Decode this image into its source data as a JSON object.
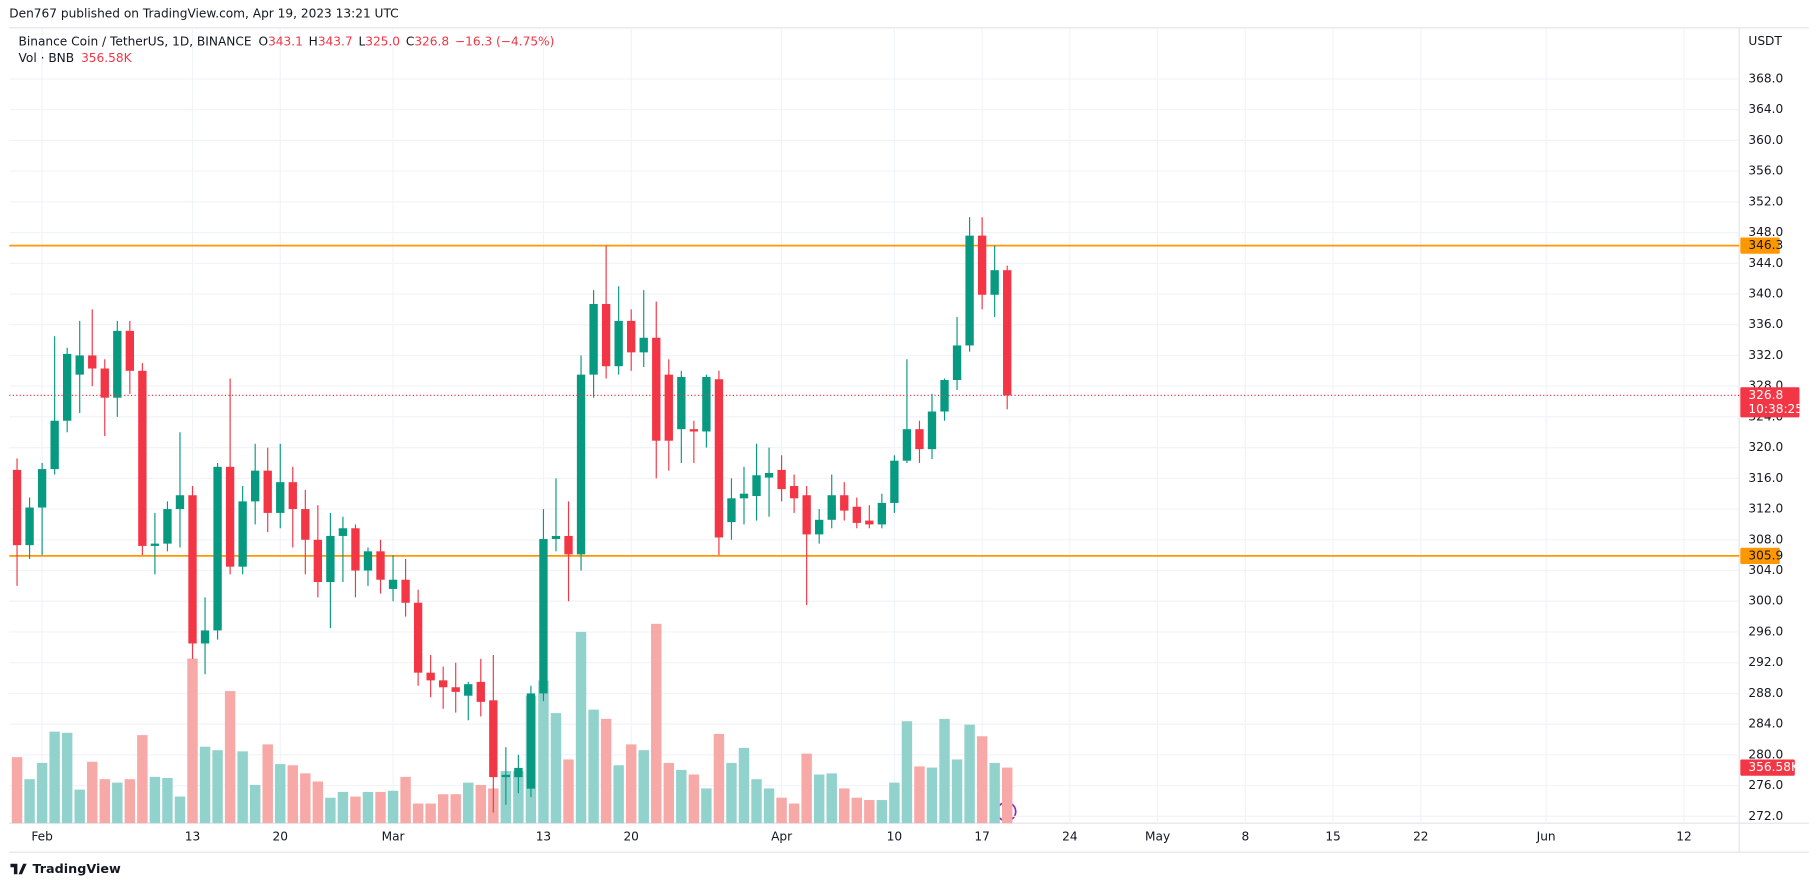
{
  "chart_data": {
    "type": "candlestick",
    "attribution": "Den767 published on TradingView.com, Apr 19, 2023 13:21 UTC",
    "title": "Binance Coin / TetherUS, 1D, BINANCE",
    "legend": [
      {
        "key": "O",
        "value": "343.1"
      },
      {
        "key": "H",
        "value": "343.7"
      },
      {
        "key": "L",
        "value": "325.0"
      },
      {
        "key": "C",
        "value": "326.8"
      }
    ],
    "change": "−16.3 (−4.75%)",
    "volume_title": "Vol · BNB",
    "currency": "USDT",
    "countdown": "10:38:25",
    "footer": "TradingView",
    "categories": [
      null,
      null,
      "Feb",
      null,
      null,
      null,
      null,
      null,
      null,
      null,
      null,
      null,
      null,
      null,
      "13",
      null,
      null,
      null,
      null,
      null,
      null,
      "20",
      null,
      null,
      null,
      null,
      null,
      null,
      null,
      null,
      "Mar",
      null,
      null,
      null,
      null,
      null,
      null,
      null,
      null,
      null,
      null,
      null,
      "13",
      null,
      null,
      null,
      null,
      null,
      null,
      "20",
      null,
      null,
      null,
      null,
      null,
      null,
      null,
      null,
      null,
      null,
      null,
      "Apr",
      null,
      null,
      null,
      null,
      null,
      null,
      null,
      null,
      "10",
      null,
      null,
      null,
      null,
      null,
      null,
      "17",
      null,
      null,
      null,
      null,
      null,
      null,
      "24",
      null,
      null,
      null,
      null,
      null,
      null,
      "May",
      null,
      null,
      null,
      null,
      null,
      null,
      "8",
      null,
      null,
      null,
      null,
      null,
      null,
      "15",
      null,
      null,
      null,
      null,
      null,
      null,
      "22",
      null,
      null,
      null,
      null,
      null,
      null,
      null,
      null,
      null,
      "Jun",
      null,
      null,
      null,
      null,
      null,
      null,
      null,
      null,
      null,
      null,
      "12",
      null,
      null,
      null
    ],
    "open": [
      317.1,
      307.3,
      312.2,
      317.2,
      323.5,
      329.5,
      332.0,
      330.3,
      326.5,
      335.2,
      330.0,
      307.2,
      307.5,
      312.0,
      313.8,
      294.5,
      296.2,
      317.5,
      304.5,
      313.0,
      317.0,
      311.5,
      315.5,
      312.0,
      308.0,
      302.5,
      308.5,
      309.5,
      304.0,
      306.5,
      301.6,
      302.8,
      299.8,
      290.7,
      289.7,
      288.8,
      287.7,
      289.5,
      287.1,
      277.1,
      277.1,
      275.6,
      288.0,
      308.1,
      308.5,
      306.1,
      329.5,
      338.7,
      330.6,
      336.5,
      332.4,
      334.3,
      329.5,
      322.4,
      322.4,
      322.1,
      328.9,
      310.3,
      313.4,
      313.7,
      316.1,
      317.1,
      315.0,
      313.8,
      308.7,
      310.6,
      313.8,
      312.3,
      310.5,
      310.0,
      312.8,
      318.3,
      322.4,
      319.8,
      324.7,
      328.8,
      333.3,
      347.6,
      339.9,
      343.1,
      null,
      null,
      null,
      null,
      null,
      null,
      null,
      null,
      null,
      null,
      null,
      null,
      null,
      null,
      null,
      null,
      null,
      null,
      null,
      null,
      null,
      null,
      null,
      null,
      null,
      null,
      null,
      null,
      null,
      null,
      null,
      null,
      null,
      null,
      null,
      null,
      null,
      null,
      null,
      null,
      null,
      null,
      null,
      null,
      null,
      null,
      null,
      null,
      null,
      null,
      null,
      null,
      null,
      null,
      null,
      null,
      null
    ],
    "high": [
      318.6,
      313.5,
      318.0,
      334.5,
      333.0,
      336.5,
      338.0,
      331.5,
      336.5,
      336.5,
      331.0,
      311.5,
      313.0,
      322.0,
      315.0,
      300.5,
      318.0,
      329.0,
      315.0,
      320.5,
      320.0,
      320.5,
      317.5,
      314.5,
      312.5,
      311.5,
      311.0,
      310.0,
      307.0,
      308.0,
      306.0,
      305.5,
      301.5,
      293.0,
      291.5,
      292.0,
      289.5,
      292.5,
      293.0,
      281.0,
      280.0,
      289.0,
      312.0,
      316.0,
      313.0,
      332.0,
      340.5,
      346.3,
      341.0,
      338.0,
      340.5,
      339.0,
      331.5,
      330.0,
      323.5,
      329.5,
      330.0,
      316.0,
      317.5,
      320.5,
      320.0,
      319.0,
      316.5,
      315.0,
      312.0,
      316.5,
      315.5,
      313.5,
      312.5,
      314.0,
      319.0,
      331.5,
      323.5,
      327.0,
      329.0,
      337.0,
      350.0,
      350.0,
      346.3,
      343.7,
      null,
      null,
      null,
      null,
      null,
      null,
      null,
      null,
      null,
      null,
      null,
      null,
      null,
      null,
      null,
      null,
      null,
      null,
      null,
      null,
      null,
      null,
      null,
      null,
      null,
      null,
      null,
      null,
      null,
      null,
      null,
      null,
      null,
      null,
      null,
      null,
      null,
      null,
      null,
      null,
      null,
      null,
      null,
      null,
      null,
      null,
      null,
      null,
      null,
      null,
      null,
      null,
      null,
      null,
      null,
      null,
      null
    ],
    "low": [
      302.0,
      305.5,
      306.0,
      316.5,
      322.0,
      324.5,
      328.0,
      321.5,
      324.0,
      327.0,
      306.0,
      303.5,
      306.5,
      307.0,
      292.5,
      290.5,
      295.0,
      303.5,
      303.5,
      310.0,
      309.0,
      309.5,
      307.0,
      303.5,
      300.5,
      296.5,
      302.5,
      300.5,
      302.0,
      301.0,
      300.0,
      298.0,
      289.0,
      287.5,
      286.0,
      285.5,
      284.5,
      285.0,
      272.5,
      273.5,
      275.0,
      274.5,
      287.0,
      306.5,
      300.0,
      304.0,
      326.5,
      329.0,
      329.5,
      330.0,
      330.5,
      316.0,
      317.0,
      318.0,
      318.0,
      320.0,
      306.0,
      308.0,
      310.0,
      310.5,
      311.0,
      313.0,
      311.5,
      299.5,
      307.5,
      309.5,
      310.5,
      309.5,
      309.5,
      309.5,
      311.5,
      318.0,
      318.0,
      318.5,
      323.5,
      327.5,
      332.5,
      338.0,
      337.0,
      325.0,
      null,
      null,
      null,
      null,
      null,
      null,
      null,
      null,
      null,
      null,
      null,
      null,
      null,
      null,
      null,
      null,
      null,
      null,
      null,
      null,
      null,
      null,
      null,
      null,
      null,
      null,
      null,
      null,
      null,
      null,
      null,
      null,
      null,
      null,
      null,
      null,
      null,
      null,
      null,
      null,
      null,
      null,
      null,
      null,
      null,
      null,
      null,
      null,
      null,
      null,
      null,
      null,
      null,
      null,
      null,
      null,
      null
    ],
    "close": [
      307.3,
      312.2,
      317.2,
      323.5,
      332.2,
      332.0,
      330.3,
      326.5,
      335.2,
      330.0,
      307.2,
      307.5,
      312.0,
      313.8,
      294.5,
      296.2,
      317.5,
      304.5,
      313.0,
      317.0,
      311.5,
      315.5,
      312.0,
      308.0,
      302.5,
      308.5,
      309.5,
      304.0,
      306.5,
      302.8,
      302.8,
      299.8,
      290.7,
      289.7,
      288.8,
      288.2,
      289.2,
      286.9,
      277.1,
      277.4,
      278.3,
      288.0,
      308.1,
      308.5,
      306.1,
      329.5,
      338.7,
      330.6,
      336.5,
      332.4,
      334.3,
      320.9,
      320.9,
      329.2,
      322.1,
      329.2,
      308.3,
      313.4,
      314.0,
      316.4,
      316.7,
      314.6,
      313.4,
      308.7,
      310.6,
      313.8,
      311.8,
      310.2,
      310.0,
      312.8,
      318.3,
      322.4,
      319.8,
      324.7,
      328.8,
      333.3,
      347.6,
      339.9,
      343.1,
      326.8,
      null,
      null,
      null,
      null,
      null,
      null,
      null,
      null,
      null,
      null,
      null,
      null,
      null,
      null,
      null,
      null,
      null,
      null,
      null,
      null,
      null,
      null,
      null,
      null,
      null,
      null,
      null,
      null,
      null,
      null,
      null,
      null,
      null,
      null,
      null,
      null,
      null,
      null,
      null,
      null,
      null,
      null,
      null,
      null,
      null,
      null,
      null,
      null,
      null,
      null,
      null,
      null,
      null,
      null,
      null,
      null,
      null
    ],
    "volume": {
      "axis": "y2",
      "values": [
        423.5,
        282.3,
        386.4,
        587.0,
        579.5,
        215.5,
        393.8,
        282.3,
        260.1,
        282.3,
        564.7,
        297.2,
        289.8,
        170.9,
        1055.1,
        490.4,
        468.1,
        847.0,
        460.7,
        245.2,
        505.2,
        378.9,
        371.5,
        319.5,
        267.5,
        163.5,
        200.6,
        170.9,
        200.6,
        200.6,
        208.0,
        297.2,
        126.3,
        126.3,
        185.8,
        185.8,
        260.1,
        245.2,
        222.9,
        334.4,
        334.4,
        817.3,
        913.9,
        705.9,
        408.7,
        1226.0,
        728.1,
        668.7,
        371.5,
        505.2,
        468.1,
        1278.0,
        386.4,
        341.8,
        312.1,
        222.9,
        572.1,
        386.4,
        483.0,
        282.3,
        222.9,
        163.5,
        126.3,
        445.8,
        312.1,
        319.5,
        222.9,
        163.5,
        148.6,
        148.6,
        260.1,
        653.8,
        364.1,
        356.6,
        668.7,
        408.7,
        631.6,
        557.3,
        386.4,
        356.58,
        null,
        null,
        null,
        null,
        null,
        null,
        null,
        null,
        null,
        null,
        null,
        null,
        null,
        null,
        null,
        null,
        null,
        null,
        null,
        null,
        null,
        null,
        null,
        null,
        null,
        null,
        null,
        null,
        null,
        null,
        null,
        null,
        null,
        null,
        null,
        null,
        null,
        null,
        null,
        null,
        null,
        null,
        null,
        null,
        null,
        null,
        null,
        null,
        null,
        null,
        null,
        null,
        null,
        null,
        null,
        null,
        null
      ],
      "value_labels": [
        null,
        null,
        null,
        null,
        null,
        null,
        null,
        null,
        null,
        null,
        null,
        null,
        null,
        null,
        null,
        null,
        null,
        null,
        null,
        null,
        null,
        null,
        null,
        null,
        null,
        null,
        null,
        null,
        null,
        null,
        null,
        null,
        null,
        null,
        null,
        null,
        null,
        null,
        null,
        null,
        null,
        null,
        null,
        null,
        null,
        null,
        null,
        null,
        null,
        null,
        null,
        null,
        null,
        null,
        null,
        null,
        null,
        null,
        null,
        null,
        null,
        null,
        null,
        null,
        null,
        null,
        null,
        null,
        null,
        null,
        null,
        null,
        null,
        null,
        null,
        null,
        null,
        null,
        null,
        "356.58K",
        null,
        null,
        null,
        null,
        null,
        null,
        null,
        null,
        null,
        null,
        null,
        null,
        null,
        null,
        null,
        null,
        null,
        null,
        null,
        null,
        null,
        null,
        null,
        null,
        null,
        null,
        null,
        null,
        null,
        null,
        null,
        null,
        null,
        null,
        null,
        null,
        null,
        null,
        null,
        null,
        null,
        null,
        null,
        null,
        null,
        null,
        null,
        null,
        null,
        null,
        null,
        null,
        null,
        null,
        null,
        null,
        null
      ]
    },
    "up_color": "#089981",
    "down_color": "#f23645",
    "up_volume_color": "#92d2cc",
    "down_volume_color": "#f7a9a7",
    "levels": [
      {
        "value": 346.3,
        "color": "#ff9800"
      },
      {
        "value": 305.9,
        "color": "#ff9800"
      }
    ],
    "ylim": [
      271.1,
      374.5
    ],
    "yticks": [
      {
        "value": 272,
        "label": "272.0"
      },
      {
        "value": 276,
        "label": "276.0"
      },
      {
        "value": 280,
        "label": "280.0"
      },
      {
        "value": 284,
        "label": "284.0"
      },
      {
        "value": 288,
        "label": "288.0"
      },
      {
        "value": 292,
        "label": "292.0"
      },
      {
        "value": 296,
        "label": "296.0"
      },
      {
        "value": 300,
        "label": "300.0"
      },
      {
        "value": 304,
        "label": "304.0"
      },
      {
        "value": 308,
        "label": "308.0"
      },
      {
        "value": 312,
        "label": "312.0"
      },
      {
        "value": 316,
        "label": "316.0"
      },
      {
        "value": 320,
        "label": "320.0"
      },
      {
        "value": 324,
        "label": "324.0"
      },
      {
        "value": 328,
        "label": "328.0"
      },
      {
        "value": 332,
        "label": "332.0"
      },
      {
        "value": 336,
        "label": "336.0"
      },
      {
        "value": 340,
        "label": "340.0"
      },
      {
        "value": 344,
        "label": "344.0"
      },
      {
        "value": 348,
        "label": "348.0"
      },
      {
        "value": 352,
        "label": "352.0"
      },
      {
        "value": 356,
        "label": "356.0"
      },
      {
        "value": 360,
        "label": "360.0"
      },
      {
        "value": 364,
        "label": "364.0"
      },
      {
        "value": 368,
        "label": "368.0"
      }
    ],
    "y2lim": [
      0,
      5090
    ],
    "grid": true
  }
}
